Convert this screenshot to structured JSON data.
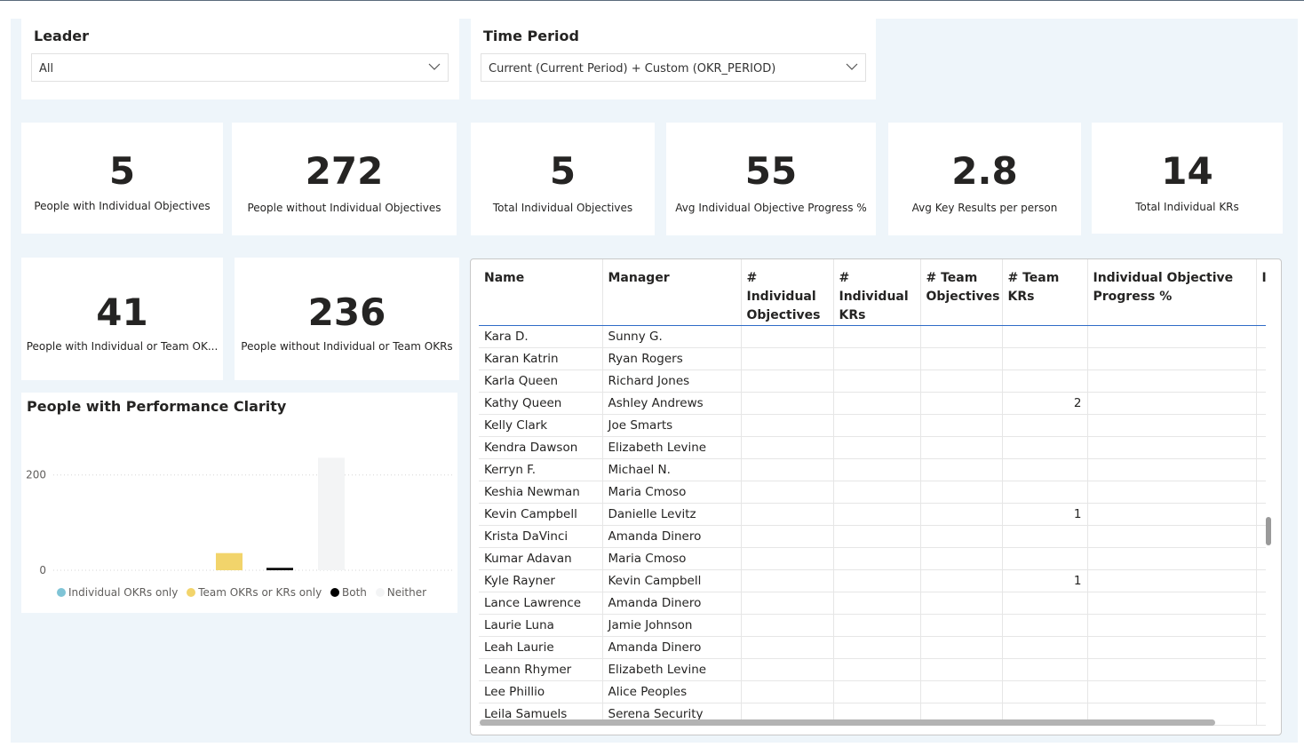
{
  "slicers": {
    "leader": {
      "title": "Leader",
      "value": "All"
    },
    "time_period": {
      "title": "Time Period",
      "value": "Current (Current Period) + Custom (OKR_PERIOD)"
    }
  },
  "kpis": {
    "people_with_ind": {
      "value": "5",
      "label": "People with Individual Objectives"
    },
    "people_without_ind": {
      "value": "272",
      "label": "People without Individual Objectives"
    },
    "total_ind_obj": {
      "value": "5",
      "label": "Total Individual Objectives"
    },
    "avg_progress": {
      "value": "55",
      "label": "Avg Individual Objective Progress %"
    },
    "avg_kr": {
      "value": "2.8",
      "label": "Avg Key Results per person"
    },
    "total_kr": {
      "value": "14",
      "label": "Total Individual KRs"
    },
    "people_with_any": {
      "value": "41",
      "label": "People with Individual or Team OK..."
    },
    "people_without_any": {
      "value": "236",
      "label": "People without Individual or Team OKRs"
    }
  },
  "chart": {
    "title": "People with Performance Clarity",
    "legend": [
      "Individual OKRs only",
      "Team OKRs or KRs only",
      "Both",
      "Neither"
    ]
  },
  "chart_data": {
    "type": "bar",
    "title": "People with Performance Clarity",
    "categories": [
      "Individual OKRs only",
      "Team OKRs or KRs only",
      "Both",
      "Neither"
    ],
    "values": [
      0,
      36,
      5,
      236
    ],
    "colors": [
      "#7fc4d6",
      "#f2d46b",
      "#000000",
      "#f3f4f5"
    ],
    "yticks": [
      0,
      200
    ],
    "ylim": [
      0,
      240
    ],
    "xlabel": "",
    "ylabel": ""
  },
  "table": {
    "columns": [
      "Name",
      "Manager",
      "# Individual Objectives",
      "# Individual KRs",
      "# Team Objectives",
      "# Team KRs",
      "Individual Objective Progress %",
      "I"
    ],
    "rows": [
      [
        "Kara D.",
        "Sunny G.",
        "",
        "",
        "",
        "",
        "",
        ""
      ],
      [
        "Karan Katrin",
        "Ryan Rogers",
        "",
        "",
        "",
        "",
        "",
        ""
      ],
      [
        "Karla Queen",
        "Richard Jones",
        "",
        "",
        "",
        "",
        "",
        ""
      ],
      [
        "Kathy Queen",
        "Ashley Andrews",
        "",
        "",
        "",
        "2",
        "",
        ""
      ],
      [
        "Kelly Clark",
        "Joe Smarts",
        "",
        "",
        "",
        "",
        "",
        ""
      ],
      [
        "Kendra Dawson",
        "Elizabeth Levine",
        "",
        "",
        "",
        "",
        "",
        ""
      ],
      [
        "Kerryn F.",
        "Michael N.",
        "",
        "",
        "",
        "",
        "",
        ""
      ],
      [
        "Keshia Newman",
        "Maria Cmoso",
        "",
        "",
        "",
        "",
        "",
        ""
      ],
      [
        "Kevin Campbell",
        "Danielle Levitz",
        "",
        "",
        "",
        "1",
        "",
        ""
      ],
      [
        "Krista DaVinci",
        "Amanda Dinero",
        "",
        "",
        "",
        "",
        "",
        ""
      ],
      [
        "Kumar Adavan",
        "Maria Cmoso",
        "",
        "",
        "",
        "",
        "",
        ""
      ],
      [
        "Kyle Rayner",
        "Kevin Campbell",
        "",
        "",
        "",
        "1",
        "",
        ""
      ],
      [
        "Lance Lawrence",
        "Amanda Dinero",
        "",
        "",
        "",
        "",
        "",
        ""
      ],
      [
        "Laurie Luna",
        "Jamie Johnson",
        "",
        "",
        "",
        "",
        "",
        ""
      ],
      [
        "Leah Laurie",
        "Amanda Dinero",
        "",
        "",
        "",
        "",
        "",
        ""
      ],
      [
        "Leann Rhymer",
        "Elizabeth Levine",
        "",
        "",
        "",
        "",
        "",
        ""
      ],
      [
        "Lee Phillio",
        "Alice Peoples",
        "",
        "",
        "",
        "",
        "",
        ""
      ],
      [
        "Leila Samuels",
        "Serena Security",
        "",
        "",
        "",
        "",
        "",
        ""
      ]
    ]
  }
}
